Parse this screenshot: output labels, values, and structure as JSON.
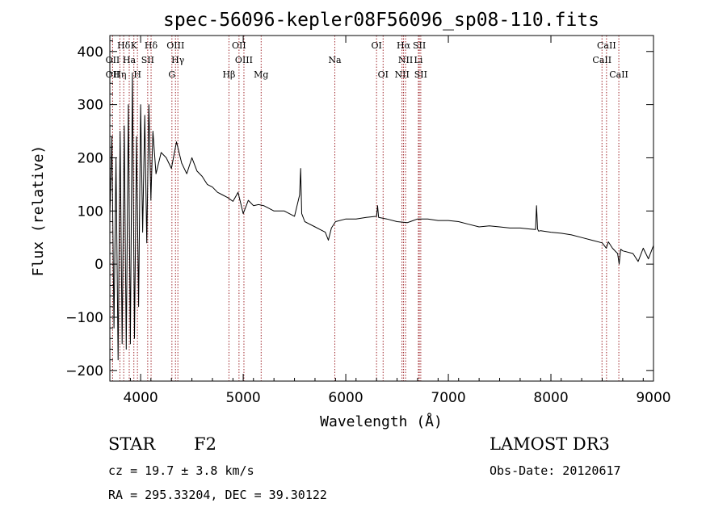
{
  "chart_data": {
    "type": "line",
    "title": "spec-56096-kepler08F56096_sp08-110.fits",
    "xlabel": "Wavelength (Å)",
    "ylabel": "Flux (relative)",
    "xlim": [
      3700,
      9000
    ],
    "ylim": [
      -220,
      430
    ],
    "xticks": [
      4000,
      5000,
      6000,
      7000,
      8000,
      9000
    ],
    "yticks": [
      -200,
      -100,
      0,
      100,
      200,
      300,
      400
    ],
    "series": [
      {
        "name": "spectrum",
        "x": [
          3700,
          3720,
          3740,
          3760,
          3780,
          3800,
          3820,
          3840,
          3860,
          3880,
          3900,
          3920,
          3940,
          3960,
          3980,
          4000,
          4020,
          4040,
          4060,
          4080,
          4100,
          4120,
          4150,
          4200,
          4250,
          4300,
          4350,
          4400,
          4450,
          4500,
          4550,
          4600,
          4650,
          4700,
          4750,
          4800,
          4850,
          4900,
          4950,
          5000,
          5050,
          5100,
          5150,
          5200,
          5300,
          5400,
          5500,
          5550,
          5560,
          5570,
          5600,
          5700,
          5750,
          5800,
          5830,
          5860,
          5900,
          6000,
          6100,
          6200,
          6300,
          6310,
          6320,
          6400,
          6500,
          6600,
          6700,
          6800,
          6900,
          7000,
          7100,
          7200,
          7300,
          7400,
          7500,
          7600,
          7700,
          7800,
          7850,
          7860,
          7870,
          7880,
          7900,
          8000,
          8100,
          8200,
          8300,
          8400,
          8500,
          8540,
          8560,
          8600,
          8650,
          8665,
          8680,
          8700,
          8800,
          8850,
          8900,
          8950,
          9000
        ],
        "values": [
          90,
          240,
          -120,
          200,
          -180,
          250,
          -150,
          260,
          -160,
          300,
          -150,
          360,
          -140,
          240,
          -80,
          300,
          60,
          280,
          40,
          300,
          120,
          250,
          170,
          210,
          200,
          180,
          230,
          190,
          170,
          200,
          175,
          165,
          150,
          145,
          135,
          130,
          125,
          118,
          135,
          95,
          120,
          110,
          112,
          110,
          100,
          100,
          90,
          130,
          180,
          95,
          80,
          70,
          65,
          60,
          45,
          68,
          80,
          85,
          85,
          88,
          90,
          110,
          88,
          85,
          80,
          78,
          85,
          85,
          82,
          82,
          80,
          75,
          70,
          72,
          70,
          68,
          68,
          66,
          65,
          110,
          66,
          62,
          63,
          60,
          58,
          55,
          50,
          45,
          40,
          30,
          42,
          30,
          20,
          0,
          28,
          25,
          20,
          5,
          30,
          10,
          35
        ]
      }
    ],
    "lines": [
      {
        "label": "Hδ",
        "x": 3835,
        "row": 1
      },
      {
        "label": "K",
        "x": 3934,
        "row": 1
      },
      {
        "label": "Hδ",
        "x": 4102,
        "row": 1
      },
      {
        "label": "OIII",
        "x": 4340,
        "row": 1
      },
      {
        "label": "OII",
        "x": 4959,
        "row": 1
      },
      {
        "label": "OI",
        "x": 6300,
        "row": 1
      },
      {
        "label": "Hα",
        "x": 6563,
        "row": 1
      },
      {
        "label": "SII",
        "x": 6717,
        "row": 1
      },
      {
        "label": "CaII",
        "x": 8542,
        "row": 1
      },
      {
        "label": "OII",
        "x": 3727,
        "row": 2
      },
      {
        "label": "Ha",
        "x": 3889,
        "row": 2
      },
      {
        "label": "SII",
        "x": 4069,
        "row": 2
      },
      {
        "label": "Hγ",
        "x": 4363,
        "row": 2
      },
      {
        "label": "OIII",
        "x": 5007,
        "row": 2
      },
      {
        "label": "Na",
        "x": 5893,
        "row": 2
      },
      {
        "label": "NII",
        "x": 6583,
        "row": 2
      },
      {
        "label": "Li",
        "x": 6708,
        "row": 2
      },
      {
        "label": "CaII",
        "x": 8498,
        "row": 2
      },
      {
        "label": "OII",
        "x": 3727,
        "row": 3
      },
      {
        "label": "Hη",
        "x": 3798,
        "row": 3
      },
      {
        "label": "H",
        "x": 3969,
        "row": 3
      },
      {
        "label": "G",
        "x": 4305,
        "row": 3
      },
      {
        "label": "Hβ",
        "x": 4861,
        "row": 3
      },
      {
        "label": "Mg",
        "x": 5175,
        "row": 3
      },
      {
        "label": "OI",
        "x": 6364,
        "row": 3
      },
      {
        "label": "NII",
        "x": 6548,
        "row": 3
      },
      {
        "label": "SII",
        "x": 6731,
        "row": 3
      },
      {
        "label": "CaII",
        "x": 8662,
        "row": 3
      }
    ]
  },
  "info": {
    "object_type": "STAR",
    "subclass": "F2",
    "survey": "LAMOST DR3",
    "cz": "cz = 19.7 ± 3.8 km/s",
    "obs_date": "Obs-Date: 20120617",
    "coords": "RA = 295.33204, DEC =  39.30122"
  },
  "colors": {
    "spectrum": "#000000",
    "line_marker": "#a0282d",
    "axes": "#000000"
  }
}
